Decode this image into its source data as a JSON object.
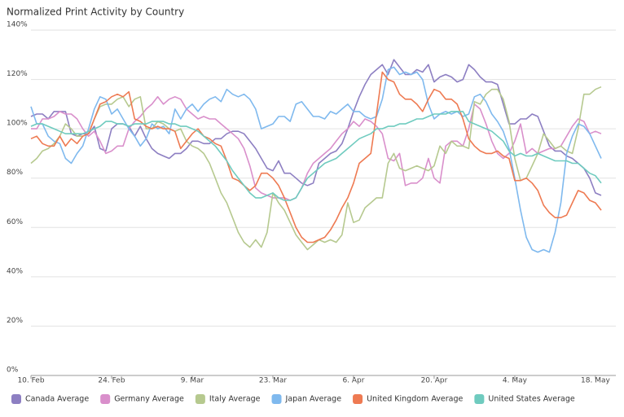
{
  "chart_data": {
    "type": "line",
    "title": "Normalized Print Activity by Country",
    "categories": [
      "10. Feb",
      null,
      null,
      null,
      null,
      null,
      null,
      null,
      null,
      null,
      null,
      null,
      null,
      null,
      "24. Feb",
      null,
      null,
      null,
      null,
      null,
      null,
      null,
      null,
      null,
      null,
      null,
      null,
      null,
      "9. Mar",
      null,
      null,
      null,
      null,
      null,
      null,
      null,
      null,
      null,
      null,
      null,
      null,
      null,
      "23. Mar",
      null,
      null,
      null,
      null,
      null,
      null,
      null,
      null,
      null,
      null,
      null,
      null,
      null,
      "6. Apr",
      null,
      null,
      null,
      null,
      null,
      null,
      null,
      null,
      null,
      null,
      null,
      null,
      null,
      "20. Apr",
      null,
      null,
      null,
      null,
      null,
      null,
      null,
      null,
      null,
      null,
      null,
      null,
      null,
      "4. May",
      null,
      null,
      null,
      null,
      null,
      null,
      null,
      null,
      null,
      null,
      null,
      null,
      null,
      "18. May",
      null
    ],
    "ylim": [
      0,
      140
    ],
    "yticks": [
      {
        "value": 0,
        "label": "0%"
      },
      {
        "value": 20,
        "label": "20%"
      },
      {
        "value": 40,
        "label": "40%"
      },
      {
        "value": 60,
        "label": "60%"
      },
      {
        "value": 80,
        "label": "80%"
      },
      {
        "value": 100,
        "label": "100%"
      },
      {
        "value": 120,
        "label": "120%"
      },
      {
        "value": 140,
        "label": "140%"
      }
    ],
    "grid": true,
    "series": [
      {
        "name": "Canada Average",
        "color": "#8d7fc2",
        "values": [
          105,
          106,
          106,
          104,
          107,
          107,
          107,
          98,
          97,
          98,
          98,
          101,
          92,
          91,
          100,
          102,
          102,
          101,
          97,
          101,
          96,
          92,
          90,
          89,
          88,
          90,
          90,
          92,
          95,
          95,
          94,
          94,
          96,
          96,
          98,
          99,
          99,
          98,
          95,
          92,
          88,
          84,
          83,
          87,
          82,
          82,
          80,
          78,
          77,
          78,
          86,
          88,
          90,
          91,
          94,
          100,
          107,
          113,
          118,
          122,
          124,
          126,
          122,
          128,
          125,
          122,
          122,
          124,
          123,
          126,
          119,
          121,
          122,
          121,
          119,
          120,
          126,
          124,
          121,
          119,
          119,
          118,
          110,
          102,
          102,
          104,
          104,
          106,
          105,
          99,
          93,
          91,
          91,
          89,
          88,
          86,
          84,
          80,
          74,
          73
        ]
      },
      {
        "name": "Germany Average",
        "color": "#d98fcb",
        "values": [
          100,
          100,
          104,
          104,
          105,
          107,
          106,
          106,
          104,
          100,
          97,
          99,
          95,
          90,
          91,
          93,
          93,
          100,
          103,
          105,
          108,
          110,
          113,
          110,
          112,
          113,
          112,
          108,
          106,
          104,
          105,
          104,
          104,
          102,
          100,
          98,
          96,
          92,
          85,
          76,
          74,
          73,
          72,
          72,
          72,
          71,
          72,
          76,
          82,
          86,
          88,
          90,
          92,
          95,
          98,
          100,
          103,
          101,
          104,
          103,
          101,
          98,
          88,
          87,
          90,
          77,
          78,
          78,
          80,
          88,
          80,
          78,
          93,
          95,
          95,
          93,
          100,
          110,
          108,
          102,
          95,
          90,
          88,
          90,
          95,
          102,
          90,
          92,
          90,
          91,
          92,
          92,
          93,
          97,
          101,
          104,
          103,
          98,
          99,
          98
        ]
      },
      {
        "name": "Italy Average",
        "color": "#b6c98f",
        "values": [
          86,
          88,
          91,
          92,
          94,
          97,
          102,
          100,
          97,
          97,
          98,
          104,
          109,
          110,
          110,
          112,
          113,
          109,
          112,
          113,
          100,
          100,
          103,
          102,
          100,
          99,
          100,
          95,
          93,
          92,
          90,
          86,
          80,
          74,
          70,
          64,
          58,
          54,
          52,
          55,
          52,
          58,
          74,
          70,
          67,
          62,
          57,
          54,
          51,
          53,
          55,
          54,
          55,
          54,
          57,
          70,
          62,
          63,
          68,
          70,
          72,
          72,
          86,
          90,
          84,
          83,
          84,
          85,
          84,
          83,
          85,
          93,
          90,
          95,
          93,
          93,
          92,
          111,
          110,
          114,
          116,
          116,
          112,
          103,
          88,
          79,
          80,
          85,
          90,
          98,
          95,
          92,
          93,
          91,
          90,
          100,
          114,
          114,
          116,
          117
        ]
      },
      {
        "name": "Japan Average",
        "color": "#7fb9ee",
        "values": [
          109,
          102,
          102,
          97,
          95,
          94,
          88,
          86,
          90,
          93,
          100,
          108,
          113,
          112,
          106,
          108,
          104,
          100,
          97,
          93,
          96,
          102,
          100,
          101,
          98,
          108,
          104,
          108,
          110,
          107,
          110,
          112,
          113,
          111,
          116,
          114,
          113,
          114,
          112,
          108,
          100,
          101,
          102,
          105,
          105,
          103,
          110,
          111,
          108,
          105,
          105,
          104,
          107,
          106,
          108,
          110,
          107,
          107,
          105,
          104,
          105,
          112,
          124,
          125,
          122,
          123,
          122,
          123,
          120,
          110,
          104,
          106,
          107,
          106,
          107,
          105,
          106,
          113,
          114,
          111,
          106,
          103,
          99,
          92,
          80,
          67,
          56,
          51,
          50,
          51,
          50,
          58,
          70,
          90,
          97,
          102,
          101,
          98,
          93,
          88
        ]
      },
      {
        "name": "United Kingdom Average",
        "color": "#ee7a52",
        "values": [
          96,
          97,
          94,
          93,
          93,
          97,
          93,
          96,
          94,
          97,
          98,
          104,
          110,
          111,
          113,
          114,
          113,
          115,
          104,
          103,
          101,
          100,
          101,
          100,
          100,
          99,
          92,
          95,
          98,
          100,
          97,
          96,
          94,
          93,
          87,
          80,
          79,
          77,
          75,
          77,
          82,
          82,
          80,
          77,
          72,
          66,
          60,
          56,
          54,
          54,
          55,
          56,
          59,
          63,
          68,
          72,
          78,
          86,
          88,
          90,
          106,
          123,
          120,
          119,
          114,
          112,
          112,
          110,
          107,
          112,
          116,
          115,
          112,
          112,
          110,
          104,
          96,
          93,
          91,
          90,
          90,
          91,
          89,
          88,
          79,
          79,
          80,
          78,
          75,
          69,
          66,
          64,
          64,
          65,
          70,
          75,
          74,
          71,
          70,
          67
        ]
      },
      {
        "name": "United States Average",
        "color": "#6fcbbf",
        "values": [
          101,
          102,
          102,
          101,
          100,
          99,
          98,
          98,
          98,
          98,
          99,
          100,
          101,
          103,
          103,
          102,
          102,
          101,
          102,
          102,
          102,
          103,
          103,
          103,
          102,
          102,
          101,
          101,
          100,
          99,
          97,
          95,
          93,
          90,
          87,
          83,
          80,
          77,
          74,
          72,
          72,
          73,
          74,
          72,
          71,
          71,
          72,
          76,
          80,
          82,
          84,
          86,
          87,
          88,
          90,
          92,
          94,
          96,
          97,
          98,
          100,
          100,
          101,
          101,
          102,
          102,
          103,
          104,
          104,
          105,
          106,
          106,
          106,
          107,
          107,
          107,
          103,
          102,
          101,
          100,
          99,
          97,
          95,
          91,
          89,
          90,
          89,
          89,
          90,
          89,
          88,
          87,
          87,
          87,
          86,
          86,
          84,
          82,
          81,
          78
        ]
      }
    ]
  }
}
